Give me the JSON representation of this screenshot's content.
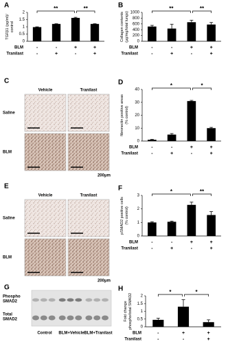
{
  "chart_data": [
    {
      "type": "bar",
      "panel": "A",
      "ylabel": [
        "TGFβ1 (pg/ml)/",
        "control"
      ],
      "values": [
        0.98,
        1.2,
        1.62,
        1.2
      ],
      "errors": [
        0.02,
        0.02,
        0.04,
        0.02
      ],
      "color": "#000000",
      "ylim": [
        0,
        2
      ],
      "yticks": [
        0,
        0.5,
        1,
        1.5,
        2
      ],
      "conditions": [
        {
          "name": "BLM",
          "signs": [
            "-",
            "-",
            "+",
            "+"
          ]
        },
        {
          "name": "Tranilast",
          "signs": [
            "-",
            "+",
            "-",
            "+"
          ]
        }
      ],
      "significance": [
        {
          "label": "**",
          "bars": [
            0,
            2
          ]
        },
        {
          "label": "**",
          "bars": [
            2,
            3
          ]
        }
      ]
    },
    {
      "type": "bar",
      "panel": "B",
      "ylabel": [
        "Collagen contents",
        "(μg/mg/total lungs)"
      ],
      "values": [
        510,
        440,
        660,
        580
      ],
      "errors": [
        40,
        150,
        70,
        70
      ],
      "color": "#000000",
      "ylim": [
        0,
        1000
      ],
      "yticks": [
        0,
        200,
        400,
        600,
        800,
        1000
      ],
      "conditions": [
        {
          "name": "BLM",
          "signs": [
            "-",
            "-",
            "+",
            "+"
          ]
        },
        {
          "name": "Tranilast",
          "signs": [
            "-",
            "+",
            "-",
            "+"
          ]
        }
      ],
      "significance": [
        {
          "label": "**",
          "bars": [
            0,
            2
          ]
        },
        {
          "label": "**",
          "bars": [
            2,
            3
          ]
        }
      ]
    },
    {
      "type": "bar",
      "panel": "D",
      "ylabel": [
        "fibronectin positive areas",
        "(% control)"
      ],
      "values": [
        1,
        5,
        31,
        10
      ],
      "errors": [
        0.3,
        0.8,
        0.5,
        0.6
      ],
      "color": "#000000",
      "ylim": [
        0,
        40
      ],
      "yticks": [
        0,
        10,
        20,
        30,
        40
      ],
      "conditions": [
        {
          "name": "BLM",
          "signs": [
            "-",
            "-",
            "+",
            "+"
          ]
        },
        {
          "name": "Tranilast",
          "signs": [
            "-",
            "+",
            "-",
            "+"
          ]
        }
      ],
      "significance": [
        {
          "label": "*",
          "bars": [
            0,
            2
          ]
        },
        {
          "label": "*",
          "bars": [
            2,
            3
          ]
        }
      ]
    },
    {
      "type": "bar",
      "panel": "F",
      "ylabel": [
        "pSMAD2 positive cells",
        "(% control)"
      ],
      "values": [
        1.0,
        1.05,
        2.3,
        1.55
      ],
      "errors": [
        0.05,
        0.05,
        0.2,
        0.25
      ],
      "color": "#000000",
      "ylim": [
        0,
        3
      ],
      "yticks": [
        0,
        1,
        2,
        3
      ],
      "conditions": [
        {
          "name": "BLM",
          "signs": [
            "-",
            "-",
            "+",
            "+"
          ]
        },
        {
          "name": "Tranilast",
          "signs": [
            "-",
            "+",
            "-",
            "+"
          ]
        }
      ],
      "significance": [
        {
          "label": "*",
          "bars": [
            0,
            2
          ]
        },
        {
          "label": "**",
          "bars": [
            2,
            3
          ]
        }
      ]
    },
    {
      "type": "bar",
      "panel": "H",
      "ylabel": [
        "Fold change",
        "phospho/total SMAD2"
      ],
      "values": [
        0.45,
        1.3,
        0.3
      ],
      "errors": [
        0.1,
        0.45,
        0.15
      ],
      "color": "#000000",
      "ylim": [
        0,
        2
      ],
      "yticks": [
        0,
        0.5,
        1,
        1.5,
        2
      ],
      "conditions": [
        {
          "name": "BLM",
          "signs": [
            "-",
            "+",
            "+"
          ]
        },
        {
          "name": "Tranilast",
          "signs": [
            "-",
            "-",
            "+"
          ]
        }
      ],
      "significance": [
        {
          "label": "*",
          "bars": [
            0,
            1
          ]
        },
        {
          "label": "*",
          "bars": [
            1,
            2
          ]
        }
      ]
    }
  ],
  "image_panels": [
    {
      "panel": "C",
      "columns": [
        "Vehicle",
        "Tranilast"
      ],
      "rows": [
        "Saline",
        "BLM"
      ],
      "scale_bar": "200μm"
    },
    {
      "panel": "E",
      "columns": [
        "Vehicle",
        "Tranilast"
      ],
      "rows": [
        "Saline",
        "BLM"
      ],
      "scale_bar": "200μm"
    }
  ],
  "blot": {
    "panel": "G",
    "rows": [
      [
        "Phospho",
        "SMAD2"
      ],
      [
        "Total",
        "SMAD2"
      ]
    ],
    "lanes": [
      "Control",
      "BLM+Vehicle",
      "BLM+Tranilast"
    ]
  }
}
